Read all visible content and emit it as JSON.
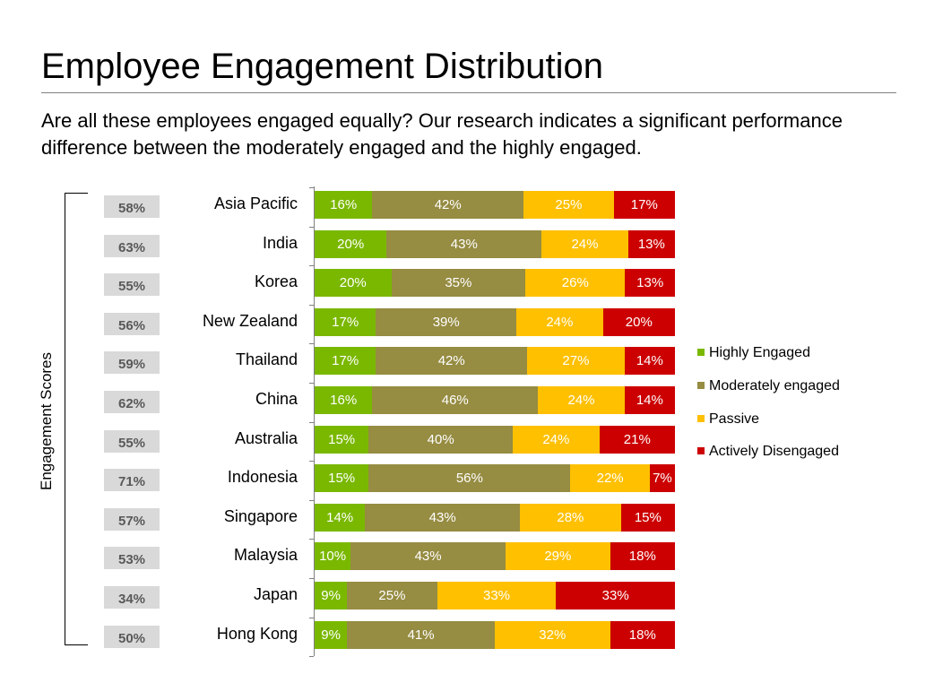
{
  "title": "Employee Engagement Distribution",
  "subtitle": "Are all these employees engaged equally? Our research indicates a significant performance difference between the moderately engaged and the highly engaged.",
  "chart_data": {
    "type": "bar",
    "orientation": "horizontal",
    "stacked": "percent",
    "ylabel": "Engagement Scores",
    "categories": [
      "Asia Pacific",
      "India",
      "Korea",
      "New Zealand",
      "Thailand",
      "China",
      "Australia",
      "Indonesia",
      "Singapore",
      "Malaysia",
      "Japan",
      "Hong Kong"
    ],
    "engagement_scores": [
      "58%",
      "63%",
      "55%",
      "56%",
      "59%",
      "62%",
      "55%",
      "71%",
      "57%",
      "53%",
      "34%",
      "50%"
    ],
    "series": [
      {
        "name": "Highly Engaged",
        "color": "#7ab800",
        "values": [
          16,
          20,
          20,
          17,
          17,
          16,
          15,
          15,
          14,
          10,
          9,
          9
        ]
      },
      {
        "name": "Moderately engaged",
        "color": "#968c42",
        "values": [
          42,
          43,
          35,
          39,
          42,
          46,
          40,
          56,
          43,
          43,
          25,
          41
        ]
      },
      {
        "name": "Passive",
        "color": "#ffc000",
        "values": [
          25,
          24,
          26,
          24,
          27,
          24,
          24,
          22,
          28,
          29,
          33,
          32
        ]
      },
      {
        "name": "Actively Disengaged",
        "color": "#cc0000",
        "values": [
          17,
          13,
          13,
          20,
          14,
          14,
          21,
          7,
          15,
          18,
          33,
          18
        ]
      }
    ],
    "legend_position": "right",
    "value_suffix": "%"
  }
}
